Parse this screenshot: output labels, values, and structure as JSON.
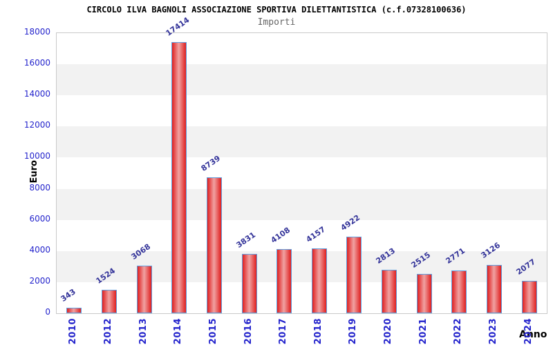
{
  "chart_data": {
    "type": "bar",
    "title": "CIRCOLO ILVA BAGNOLI ASSOCIAZIONE SPORTIVA DILETTANTISTICA (c.f.07328100636)",
    "subtitle": "Importi",
    "xlabel": "Anno",
    "ylabel": "Euro",
    "categories": [
      "2010",
      "2012",
      "2013",
      "2014",
      "2015",
      "2016",
      "2017",
      "2018",
      "2019",
      "2020",
      "2021",
      "2022",
      "2023",
      "2024"
    ],
    "values": [
      343,
      1524,
      3068,
      17414,
      8739,
      3831,
      4108,
      4157,
      4922,
      2813,
      2515,
      2771,
      3126,
      2077
    ],
    "ylim": [
      0,
      18000
    ],
    "ytick_step": 2000,
    "yticks": [
      0,
      2000,
      4000,
      6000,
      8000,
      10000,
      12000,
      14000,
      16000,
      18000
    ],
    "bar_value_labels_shown": true,
    "legend": "none",
    "background_style": "alternating horizontal bands every 2000"
  },
  "colors": {
    "title": "#000000",
    "subtitle": "#666666",
    "tick_label_blue": "#2323cc",
    "bar_value_label": "#333399",
    "bar_edge_red": "#e01f1f",
    "bar_center_highlight": "#f0a2a2",
    "bar_border": "#5e9fe0",
    "band_gray": "#f2f2f2",
    "plot_border": "#c9c9c9",
    "axis_title": "#000000"
  }
}
